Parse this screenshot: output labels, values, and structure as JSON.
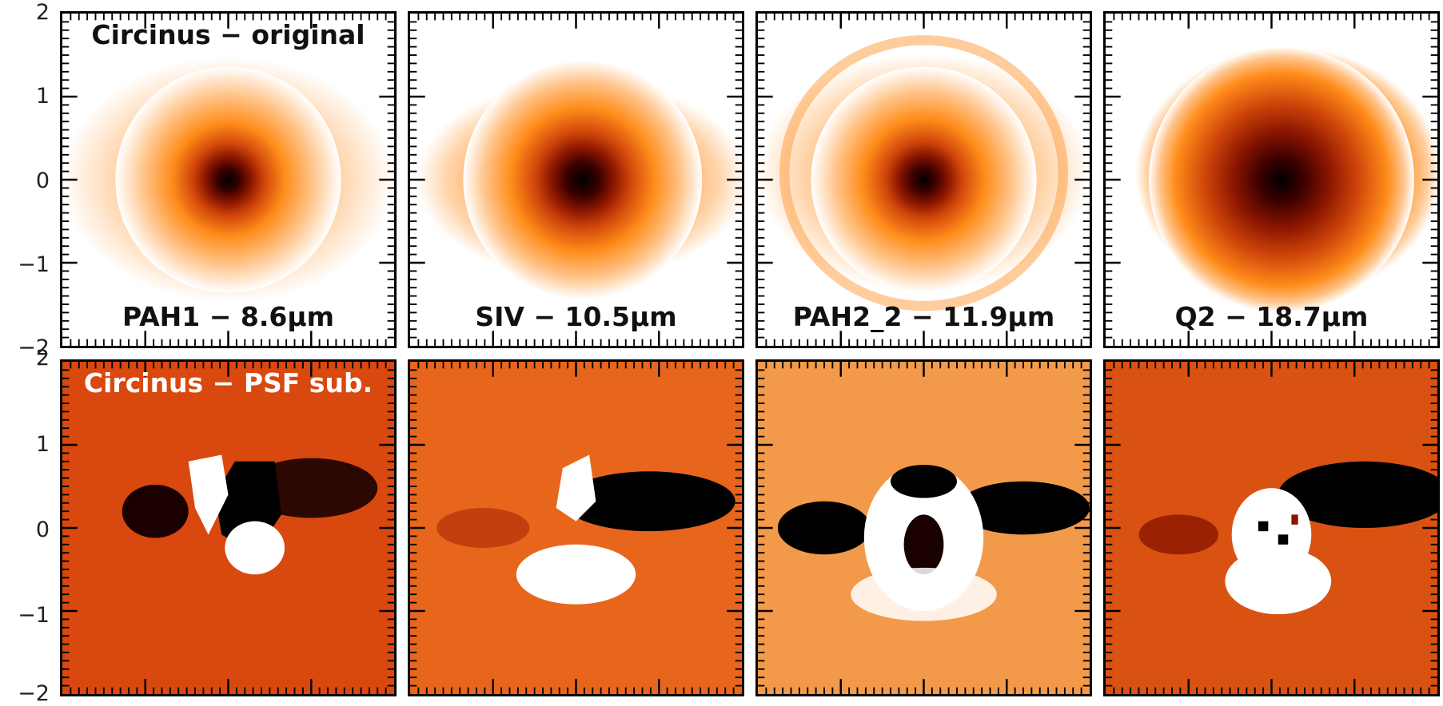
{
  "y_axis": {
    "ticks": [
      "2",
      "1",
      "0",
      "−1",
      "−2"
    ]
  },
  "panels": [
    {
      "row": 0,
      "col": 0,
      "kind": "original",
      "cmap_stop": "#ff8c1a",
      "top_label": "Circinus − original",
      "bottom_label": "PAH1 − 8.6μm"
    },
    {
      "row": 0,
      "col": 1,
      "kind": "original",
      "cmap_stop": "#ff8c1a",
      "top_label": "",
      "bottom_label": "SIV − 10.5μm"
    },
    {
      "row": 0,
      "col": 2,
      "kind": "original",
      "cmap_stop": "#ff8c1a",
      "top_label": "",
      "bottom_label": "PAH2_2 − 11.9μm"
    },
    {
      "row": 0,
      "col": 3,
      "kind": "original",
      "cmap_stop": "#ff8c1a",
      "top_label": "",
      "bottom_label": "Q2 − 18.7μm"
    },
    {
      "row": 1,
      "col": 0,
      "kind": "psf",
      "cmap_stop": "#d9480f",
      "top_label": "Circinus − PSF sub.",
      "bottom_label": ""
    },
    {
      "row": 1,
      "col": 1,
      "kind": "psf",
      "cmap_stop": "#e8661c",
      "top_label": "",
      "bottom_label": ""
    },
    {
      "row": 1,
      "col": 2,
      "kind": "psf",
      "cmap_stop": "#f39a4a",
      "top_label": "",
      "bottom_label": ""
    },
    {
      "row": 1,
      "col": 3,
      "kind": "psf",
      "cmap_stop": "#d95212",
      "top_label": "",
      "bottom_label": ""
    }
  ]
}
